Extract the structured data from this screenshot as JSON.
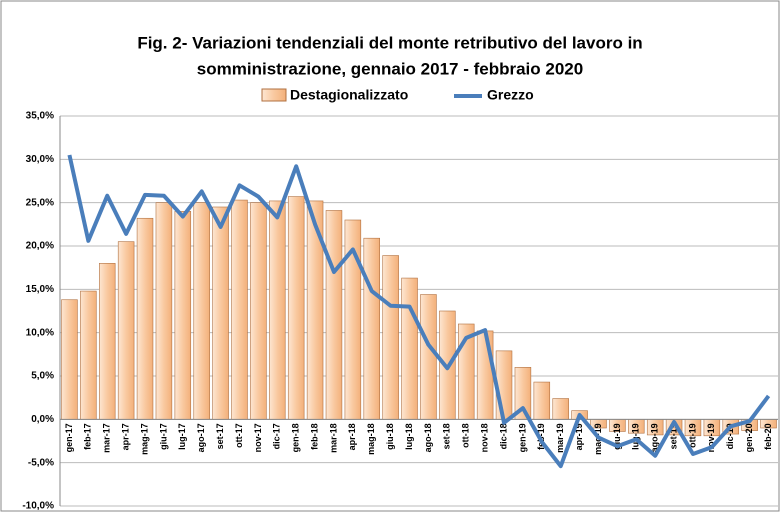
{
  "chart_data": {
    "type": "bar_line",
    "title_lines": [
      "Fig. 2- Variazioni tendenziali del monte retributivo del lavoro in",
      "somministrazione, gennaio 2017 - febbraio 2020"
    ],
    "categories": [
      "gen-17",
      "feb-17",
      "mar-17",
      "apr-17",
      "mag-17",
      "giu-17",
      "lug-17",
      "ago-17",
      "set-17",
      "ott-17",
      "nov-17",
      "dic-17",
      "gen-18",
      "feb-18",
      "mar-18",
      "apr-18",
      "mag-18",
      "giu-18",
      "lug-18",
      "ago-18",
      "set-18",
      "ott-18",
      "nov-18",
      "dic-18",
      "gen-19",
      "feb-19",
      "mar-19",
      "apr-19",
      "mag-19",
      "giu-19",
      "lug-19",
      "ago-19",
      "set-19",
      "ott-19",
      "nov-19",
      "dic-19",
      "gen-20",
      "feb-20"
    ],
    "series": [
      {
        "name": "Destagionalizzato",
        "type": "bar",
        "color": "#f9c9a0",
        "values": [
          13.8,
          14.8,
          18,
          20.5,
          23.2,
          25,
          24,
          25,
          24.5,
          25.3,
          25,
          25.2,
          25.7,
          25.2,
          24.1,
          23,
          20.9,
          18.9,
          16.3,
          14.4,
          12.5,
          11,
          10.2,
          7.9,
          6,
          4.3,
          2.4,
          1,
          -1,
          -1.4,
          -1.6,
          -1.8,
          -1.8,
          -1.9,
          -1.9,
          -1.7,
          -1.3,
          -1
        ]
      },
      {
        "name": "Grezzo",
        "type": "line",
        "color": "#4a7ebb",
        "values": [
          30.5,
          20.6,
          25.8,
          21.4,
          25.9,
          25.8,
          23.4,
          26.3,
          22.2,
          27,
          25.7,
          23.3,
          29.2,
          22.5,
          17,
          19.6,
          14.8,
          13.1,
          13,
          8.6,
          5.9,
          9.4,
          10.3,
          -0.4,
          1.3,
          -2.6,
          -5.4,
          0.5,
          -2.1,
          -3.1,
          -2.3,
          -4.2,
          -0.3,
          -4.0,
          -3.2,
          -0.8,
          -0.2,
          2.7
        ]
      }
    ],
    "ylim": [
      -10,
      35
    ],
    "yticks": [
      {
        "value": -10,
        "label": "-10,0%"
      },
      {
        "value": -5,
        "label": "-5,0%"
      },
      {
        "value": 0,
        "label": "0,0%"
      },
      {
        "value": 5,
        "label": "5,0%"
      },
      {
        "value": 10,
        "label": "10,0%"
      },
      {
        "value": 15,
        "label": "15,0%"
      },
      {
        "value": 20,
        "label": "20,0%"
      },
      {
        "value": 25,
        "label": "25,0%"
      },
      {
        "value": 30,
        "label": "30,0%"
      },
      {
        "value": 35,
        "label": "35,0%"
      }
    ],
    "grid": true
  }
}
